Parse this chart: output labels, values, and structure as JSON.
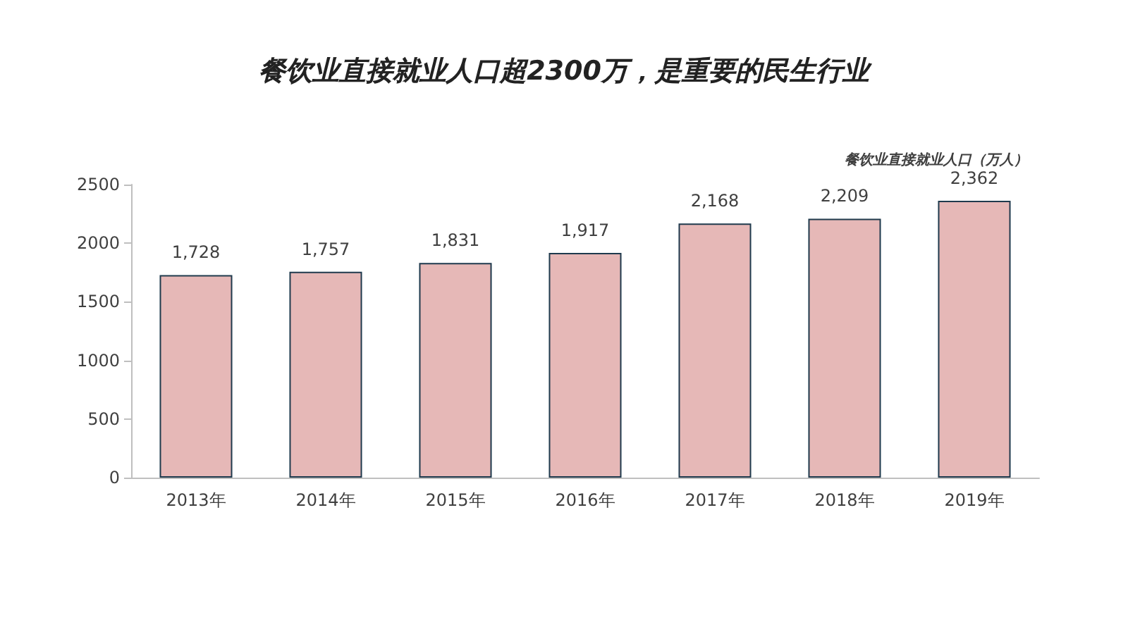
{
  "chart_data": {
    "type": "bar",
    "title": "餐饮业直接就业人口超2300万，是重要的民生行业",
    "ylabel": "餐饮业直接就业人口（万人）",
    "categories": [
      "2013年",
      "2014年",
      "2015年",
      "2016年",
      "2017年",
      "2018年",
      "2019年"
    ],
    "values": [
      1728,
      1757,
      1831,
      1917,
      2168,
      2209,
      2362
    ],
    "value_labels": [
      "1,728",
      "1,757",
      "1,831",
      "1,917",
      "2,168",
      "2,209",
      "2,362"
    ],
    "color": "#e6b8b7",
    "ylim": [
      0,
      2500
    ],
    "yticks": [
      0,
      500,
      1000,
      1500,
      2000,
      2500
    ]
  }
}
